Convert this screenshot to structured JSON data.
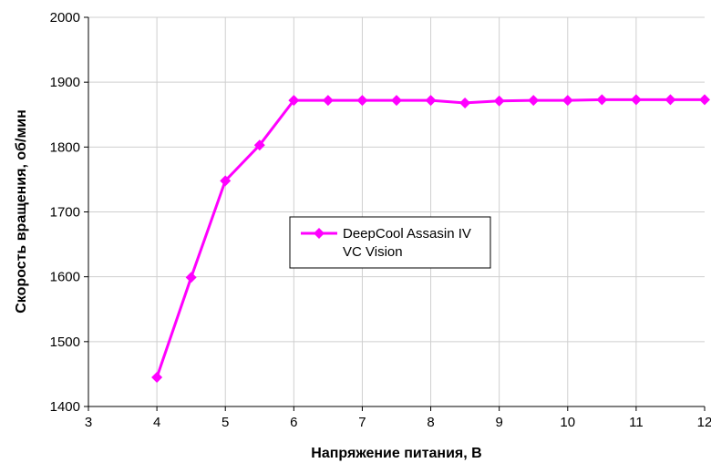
{
  "chart_data": {
    "type": "line",
    "title": "",
    "xlabel": "Напряжение питания, В",
    "ylabel": "Скорость вращения, об/мин",
    "xlim": [
      3,
      12
    ],
    "ylim": [
      1400,
      2000
    ],
    "x_ticks": [
      "3",
      "4",
      "5",
      "6",
      "7",
      "8",
      "9",
      "10",
      "11",
      "12"
    ],
    "y_ticks": [
      "1400",
      "1500",
      "1600",
      "1700",
      "1800",
      "1900",
      "2000"
    ],
    "grid": true,
    "legend_position": "center",
    "series": [
      {
        "name": "DeepCool Assasin IV VC Vision",
        "legend_lines": [
          "DeepCool Assasin IV",
          "VC Vision"
        ],
        "color": "#ff00ff",
        "marker": "diamond",
        "x": [
          4,
          4.5,
          5,
          5.5,
          6,
          6.5,
          7,
          7.5,
          8,
          8.5,
          9,
          9.5,
          10,
          10.5,
          11,
          11.5,
          12
        ],
        "y": [
          1445,
          1599,
          1748,
          1803,
          1872,
          1872,
          1872,
          1872,
          1872,
          1868,
          1871,
          1872,
          1872,
          1873,
          1873,
          1873,
          1873
        ]
      }
    ]
  }
}
